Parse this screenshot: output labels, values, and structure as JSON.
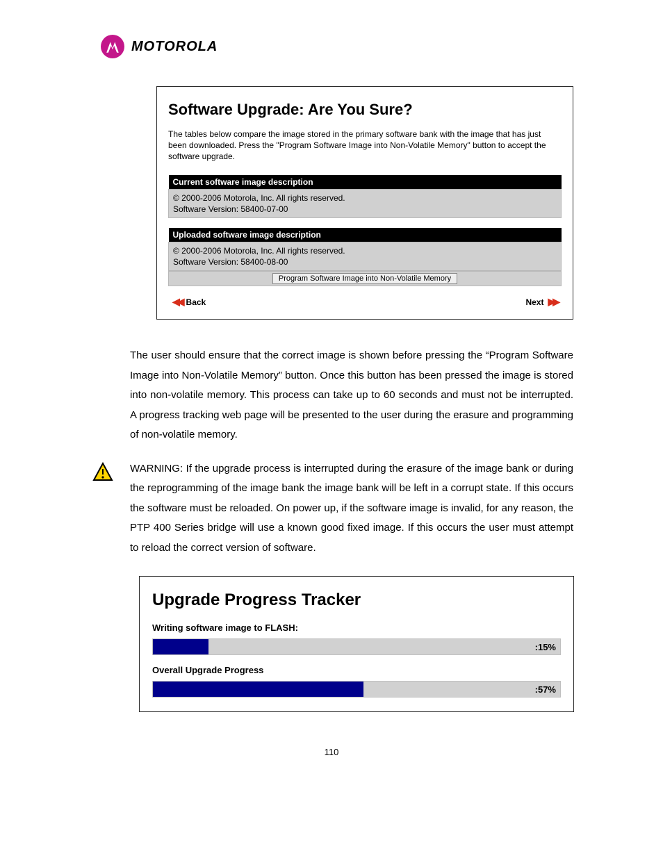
{
  "brand": {
    "name": "MOTOROLA",
    "logo_bg": "#c3168a",
    "logo_glyph_fill": "#ffffff"
  },
  "panel1": {
    "title": "Software Upgrade: Are You Sure?",
    "intro": "The tables below compare the image stored in the primary software bank with the image that has just been downloaded. Press the \"Program Software Image into Non-Volatile Memory\" button to accept the software upgrade.",
    "current_header": "Current software image description",
    "current_body": "© 2000-2006 Motorola, Inc. All rights reserved.\nSoftware Version: 58400-07-00",
    "uploaded_header": "Uploaded software image description",
    "uploaded_body": "© 2000-2006 Motorola, Inc. All rights reserved.\nSoftware Version: 58400-08-00",
    "button_label": "Program Software Image into Non-Volatile Memory",
    "back_label": "Back",
    "next_label": "Next"
  },
  "body_paragraph": "The user should ensure that the correct image is shown before pressing the “Program Software Image into Non-Volatile Memory” button. Once this button has been pressed the image is stored into non-volatile memory. This process can take up to 60 seconds and must not be interrupted. A progress tracking web page will be presented to the user during the erasure and programming of non-volatile memory.",
  "warning_paragraph": "WARNING: If the upgrade process is interrupted during the erasure of the image bank or during the reprogramming of the image bank the image bank will be left in a corrupt state. If this occurs the software must be reloaded. On power up, if the software image is invalid, for any reason, the PTP 400 Series bridge will use a known good fixed image. If this occurs the user must attempt to reload the correct version of software.",
  "panel2": {
    "title": "Upgrade Progress Tracker",
    "sections": [
      {
        "label": "Writing software image to FLASH:",
        "percent": 15,
        "display": ":15%"
      },
      {
        "label": "Overall Upgrade Progress",
        "percent": 57,
        "display": ":57%"
      }
    ],
    "bar_fill_color": "#00008b",
    "bar_track_color": "#d1d1d1"
  },
  "page_number": "110",
  "colors": {
    "panel_border": "#2b2b2b",
    "table_header_bg": "#000000",
    "table_header_fg": "#ffffff",
    "table_cell_bg": "#d0d0d0",
    "arrow_color": "#d82e1b"
  }
}
